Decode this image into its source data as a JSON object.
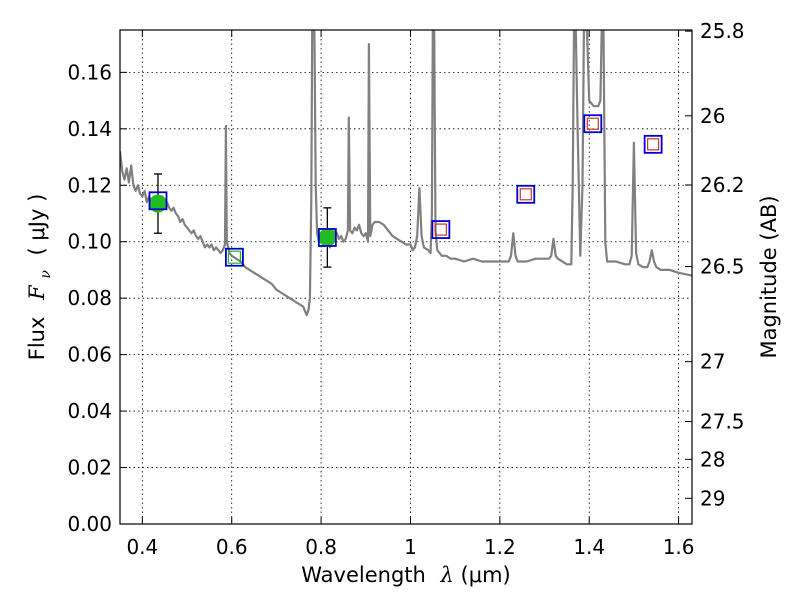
{
  "chart_data": {
    "type": "scatter",
    "xlabel_prefix": "Wavelength",
    "xlabel_symbol": "λ",
    "xlabel_unit": "(μm)",
    "ylabel_prefix": "Flux",
    "ylabel_symbol": "F",
    "ylabel_symbol_sub": "ν",
    "ylabel_unit": "( μJy )",
    "y2label": "Magnitude (AB)",
    "xlim": [
      0.35,
      1.63
    ],
    "ylim": [
      0.0,
      0.175
    ],
    "grid": true,
    "x_ticks": [
      0.4,
      0.6,
      0.8,
      1.0,
      1.2,
      1.4,
      1.6
    ],
    "x_tick_labels": [
      "0.4",
      "0.6",
      "0.8",
      "1",
      "1.2",
      "1.4",
      "1.6"
    ],
    "y_ticks": [
      0.0,
      0.02,
      0.04,
      0.06,
      0.08,
      0.1,
      0.12,
      0.14,
      0.16
    ],
    "y_tick_labels": [
      "0.00",
      "0.02",
      "0.04",
      "0.06",
      "0.08",
      "0.10",
      "0.12",
      "0.14",
      "0.16"
    ],
    "y2_ticks": [
      {
        "label": "25.8",
        "flux": 0.1746
      },
      {
        "label": "26",
        "flux": 0.1446
      },
      {
        "label": "26.2",
        "flux": 0.1201
      },
      {
        "label": "26.5",
        "flux": 0.0912
      },
      {
        "label": "27",
        "flux": 0.0575
      },
      {
        "label": "27.5",
        "flux": 0.0363
      },
      {
        "label": "28",
        "flux": 0.0229
      },
      {
        "label": "29",
        "flux": 0.0091
      }
    ],
    "colors": {
      "spectrum": "#808080",
      "observed": "#22bb22",
      "error_bar": "#000000",
      "model_box": "#0000cc",
      "model_inner": "#cc3333",
      "grid": "#000000"
    },
    "observed_points": [
      {
        "x": 0.435,
        "y": 0.1135,
        "err": 0.0105
      },
      {
        "x": 0.814,
        "y": 0.1015,
        "err": 0.0105
      }
    ],
    "model_points": [
      {
        "x": 0.435,
        "y": 0.1145,
        "inner": "none"
      },
      {
        "x": 0.606,
        "y": 0.0945,
        "inner": "green"
      },
      {
        "x": 0.814,
        "y": 0.1015,
        "inner": "green"
      },
      {
        "x": 1.068,
        "y": 0.1043,
        "inner": "red"
      },
      {
        "x": 1.258,
        "y": 0.1168,
        "inner": "red"
      },
      {
        "x": 1.408,
        "y": 0.1418,
        "inner": "red"
      },
      {
        "x": 1.543,
        "y": 0.1345,
        "inner": "red"
      }
    ],
    "spectrum": [
      [
        0.35,
        0.132
      ],
      [
        0.355,
        0.125
      ],
      [
        0.36,
        0.122
      ],
      [
        0.365,
        0.126
      ],
      [
        0.37,
        0.121
      ],
      [
        0.375,
        0.127
      ],
      [
        0.38,
        0.12
      ],
      [
        0.385,
        0.118
      ],
      [
        0.39,
        0.12
      ],
      [
        0.395,
        0.117
      ],
      [
        0.4,
        0.116
      ],
      [
        0.405,
        0.118
      ],
      [
        0.41,
        0.114
      ],
      [
        0.415,
        0.116
      ],
      [
        0.42,
        0.114
      ],
      [
        0.425,
        0.115
      ],
      [
        0.43,
        0.113
      ],
      [
        0.435,
        0.114
      ],
      [
        0.44,
        0.114
      ],
      [
        0.445,
        0.116
      ],
      [
        0.45,
        0.113
      ],
      [
        0.455,
        0.114
      ],
      [
        0.46,
        0.112
      ],
      [
        0.465,
        0.111
      ],
      [
        0.47,
        0.112
      ],
      [
        0.475,
        0.11
      ],
      [
        0.48,
        0.109
      ],
      [
        0.485,
        0.107
      ],
      [
        0.49,
        0.108
      ],
      [
        0.495,
        0.106
      ],
      [
        0.5,
        0.105
      ],
      [
        0.505,
        0.104
      ],
      [
        0.51,
        0.103
      ],
      [
        0.515,
        0.104
      ],
      [
        0.52,
        0.102
      ],
      [
        0.525,
        0.101
      ],
      [
        0.53,
        0.102
      ],
      [
        0.535,
        0.1
      ],
      [
        0.54,
        0.098
      ],
      [
        0.545,
        0.099
      ],
      [
        0.55,
        0.098
      ],
      [
        0.555,
        0.099
      ],
      [
        0.56,
        0.097
      ],
      [
        0.565,
        0.098
      ],
      [
        0.57,
        0.097
      ],
      [
        0.575,
        0.096
      ],
      [
        0.58,
        0.097
      ],
      [
        0.585,
        0.099
      ],
      [
        0.587,
        0.141
      ],
      [
        0.589,
        0.1
      ],
      [
        0.595,
        0.096
      ],
      [
        0.6,
        0.095
      ],
      [
        0.61,
        0.094
      ],
      [
        0.62,
        0.093
      ],
      [
        0.63,
        0.091
      ],
      [
        0.64,
        0.09
      ],
      [
        0.65,
        0.089
      ],
      [
        0.66,
        0.088
      ],
      [
        0.67,
        0.087
      ],
      [
        0.68,
        0.086
      ],
      [
        0.69,
        0.085
      ],
      [
        0.7,
        0.083
      ],
      [
        0.71,
        0.082
      ],
      [
        0.72,
        0.081
      ],
      [
        0.73,
        0.08
      ],
      [
        0.74,
        0.079
      ],
      [
        0.75,
        0.078
      ],
      [
        0.76,
        0.077
      ],
      [
        0.765,
        0.075
      ],
      [
        0.768,
        0.074
      ],
      [
        0.772,
        0.076
      ],
      [
        0.775,
        0.08
      ],
      [
        0.778,
        0.115
      ],
      [
        0.78,
        0.175
      ],
      [
        0.785,
        0.175
      ],
      [
        0.788,
        0.12
      ],
      [
        0.791,
        0.103
      ],
      [
        0.795,
        0.1
      ],
      [
        0.8,
        0.101
      ],
      [
        0.805,
        0.099
      ],
      [
        0.81,
        0.1
      ],
      [
        0.815,
        0.101
      ],
      [
        0.82,
        0.098
      ],
      [
        0.825,
        0.101
      ],
      [
        0.83,
        0.104
      ],
      [
        0.835,
        0.103
      ],
      [
        0.84,
        0.101
      ],
      [
        0.845,
        0.102
      ],
      [
        0.85,
        0.1
      ],
      [
        0.855,
        0.101
      ],
      [
        0.86,
        0.104
      ],
      [
        0.862,
        0.144
      ],
      [
        0.865,
        0.104
      ],
      [
        0.87,
        0.103
      ],
      [
        0.875,
        0.105
      ],
      [
        0.88,
        0.104
      ],
      [
        0.885,
        0.106
      ],
      [
        0.89,
        0.103
      ],
      [
        0.895,
        0.102
      ],
      [
        0.9,
        0.103
      ],
      [
        0.905,
        0.1
      ],
      [
        0.907,
        0.17
      ],
      [
        0.91,
        0.102
      ],
      [
        0.915,
        0.106
      ],
      [
        0.92,
        0.107
      ],
      [
        0.93,
        0.107
      ],
      [
        0.94,
        0.106
      ],
      [
        0.95,
        0.104
      ],
      [
        0.96,
        0.102
      ],
      [
        0.97,
        0.101
      ],
      [
        0.98,
        0.1
      ],
      [
        0.99,
        0.099
      ],
      [
        1.0,
        0.099
      ],
      [
        1.005,
        0.097
      ],
      [
        1.01,
        0.098
      ],
      [
        1.015,
        0.102
      ],
      [
        1.02,
        0.119
      ],
      [
        1.025,
        0.102
      ],
      [
        1.03,
        0.098
      ],
      [
        1.04,
        0.097
      ],
      [
        1.045,
        0.096
      ],
      [
        1.048,
        0.11
      ],
      [
        1.05,
        0.175
      ],
      [
        1.053,
        0.175
      ],
      [
        1.056,
        0.104
      ],
      [
        1.06,
        0.097
      ],
      [
        1.065,
        0.096
      ],
      [
        1.07,
        0.095
      ],
      [
        1.08,
        0.095
      ],
      [
        1.09,
        0.094
      ],
      [
        1.1,
        0.094
      ],
      [
        1.12,
        0.093
      ],
      [
        1.14,
        0.094
      ],
      [
        1.16,
        0.093
      ],
      [
        1.18,
        0.093
      ],
      [
        1.2,
        0.093
      ],
      [
        1.22,
        0.093
      ],
      [
        1.225,
        0.095
      ],
      [
        1.23,
        0.103
      ],
      [
        1.235,
        0.095
      ],
      [
        1.24,
        0.093
      ],
      [
        1.26,
        0.093
      ],
      [
        1.28,
        0.094
      ],
      [
        1.3,
        0.094
      ],
      [
        1.31,
        0.094
      ],
      [
        1.315,
        0.095
      ],
      [
        1.32,
        0.101
      ],
      [
        1.325,
        0.095
      ],
      [
        1.33,
        0.094
      ],
      [
        1.35,
        0.092
      ],
      [
        1.36,
        0.092
      ],
      [
        1.363,
        0.12
      ],
      [
        1.366,
        0.175
      ],
      [
        1.37,
        0.175
      ],
      [
        1.374,
        0.14
      ],
      [
        1.38,
        0.095
      ],
      [
        1.385,
        0.12
      ],
      [
        1.388,
        0.175
      ],
      [
        1.395,
        0.175
      ],
      [
        1.4,
        0.15
      ],
      [
        1.41,
        0.148
      ],
      [
        1.42,
        0.148
      ],
      [
        1.425,
        0.15
      ],
      [
        1.428,
        0.175
      ],
      [
        1.432,
        0.175
      ],
      [
        1.436,
        0.1
      ],
      [
        1.44,
        0.093
      ],
      [
        1.46,
        0.093
      ],
      [
        1.48,
        0.092
      ],
      [
        1.49,
        0.092
      ],
      [
        1.495,
        0.095
      ],
      [
        1.5,
        0.135
      ],
      [
        1.505,
        0.096
      ],
      [
        1.51,
        0.092
      ],
      [
        1.52,
        0.091
      ],
      [
        1.53,
        0.091
      ],
      [
        1.535,
        0.093
      ],
      [
        1.54,
        0.097
      ],
      [
        1.545,
        0.093
      ],
      [
        1.55,
        0.091
      ],
      [
        1.56,
        0.09
      ],
      [
        1.58,
        0.09
      ],
      [
        1.6,
        0.089
      ],
      [
        1.63,
        0.088
      ]
    ]
  }
}
